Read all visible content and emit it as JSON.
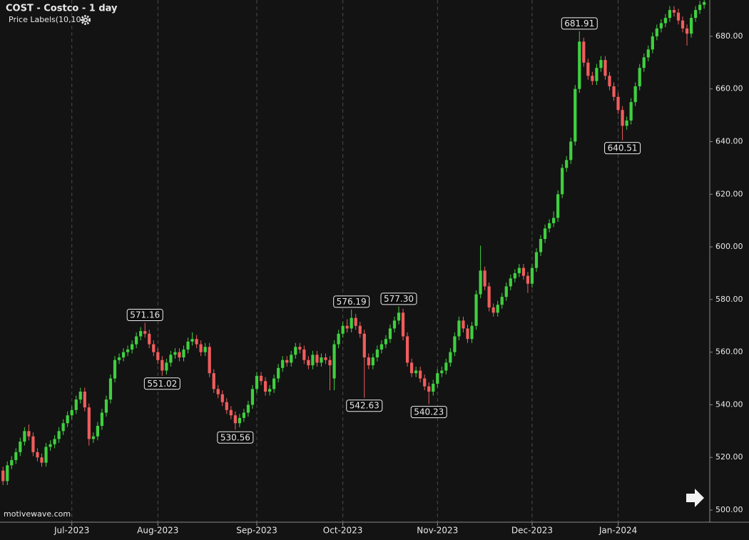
{
  "chart_data": {
    "type": "candlestick",
    "title": "COST - Costco - 1 day",
    "indicator": "Price Labels(10,10)",
    "source": "motivewave.com",
    "up_color": "#3fd03f",
    "down_color": "#f05d5d",
    "grid": true,
    "xlim": [
      -0.7,
      164.3
    ],
    "ylim": [
      495.4,
      693.8
    ],
    "xticks": [
      {
        "value": 16,
        "label": "Jul-2023"
      },
      {
        "value": 36,
        "label": "Aug-2023"
      },
      {
        "value": 59,
        "label": "Sep-2023"
      },
      {
        "value": 79,
        "label": "Oct-2023"
      },
      {
        "value": 101,
        "label": "Nov-2023"
      },
      {
        "value": 123,
        "label": "Dec-2023"
      },
      {
        "value": 143,
        "label": "Jan-2024"
      }
    ],
    "yticks": [
      {
        "value": 500,
        "label": "500.00"
      },
      {
        "value": 520,
        "label": "520.00"
      },
      {
        "value": 540,
        "label": "540.00"
      },
      {
        "value": 560,
        "label": "560.00"
      },
      {
        "value": 580,
        "label": "580.00"
      },
      {
        "value": 600,
        "label": "600.00"
      },
      {
        "value": 620,
        "label": "620.00"
      },
      {
        "value": 640,
        "label": "640.00"
      },
      {
        "value": 660,
        "label": "660.00"
      },
      {
        "value": 680,
        "label": "680.00"
      }
    ],
    "price_labels": [
      571.16,
      551.02,
      530.56,
      576.19,
      542.63,
      {
        "value": 577.3,
        "label": "577.30"
      },
      540.23,
      681.91,
      640.51
    ],
    "ohlc": [
      [
        515,
        516.5,
        509.5,
        511
      ],
      [
        511,
        518.5,
        509.5,
        517
      ],
      [
        517,
        520.5,
        515.5,
        519
      ],
      [
        519,
        523.5,
        517.5,
        522
      ],
      [
        522,
        527.5,
        520.5,
        526
      ],
      [
        526,
        531.5,
        524.5,
        530
      ],
      [
        530,
        532.5,
        526.5,
        528
      ],
      [
        528,
        529.5,
        520.5,
        522
      ],
      [
        522,
        523.5,
        518.5,
        520
      ],
      [
        520,
        521.5,
        516.5,
        518
      ],
      [
        518,
        525.5,
        516.5,
        524
      ],
      [
        524,
        526.5,
        522.5,
        525
      ],
      [
        525,
        528.5,
        523.5,
        527
      ],
      [
        527,
        531.5,
        525.5,
        530
      ],
      [
        530,
        534.5,
        528.5,
        533
      ],
      [
        533,
        537.5,
        531.5,
        536
      ],
      [
        536,
        539.5,
        534.5,
        538
      ],
      [
        538,
        543.5,
        536.5,
        542
      ],
      [
        542,
        546.5,
        540.5,
        545
      ],
      [
        545,
        546.5,
        537.5,
        539
      ],
      [
        539,
        540.5,
        524.5,
        527
      ],
      [
        527,
        529.5,
        525.5,
        528
      ],
      [
        528,
        533.5,
        526.5,
        532
      ],
      [
        532,
        538.5,
        530.5,
        537
      ],
      [
        537,
        543.5,
        535.5,
        542
      ],
      [
        542,
        551.5,
        540.5,
        550
      ],
      [
        550,
        558.5,
        548.5,
        557
      ],
      [
        557,
        559.5,
        555.5,
        558
      ],
      [
        558,
        561.5,
        556.5,
        560
      ],
      [
        560,
        562.5,
        558.5,
        561
      ],
      [
        561,
        564.5,
        559.5,
        563
      ],
      [
        563,
        567.5,
        561.5,
        566
      ],
      [
        566,
        569.5,
        564.5,
        568
      ],
      [
        568,
        571.16,
        565.5,
        567
      ],
      [
        567,
        568.5,
        561.5,
        563
      ],
      [
        563,
        564.5,
        558.5,
        560
      ],
      [
        560,
        561.5,
        555.5,
        557
      ],
      [
        557,
        558.5,
        551.02,
        553
      ],
      [
        553,
        557.5,
        551.5,
        556
      ],
      [
        556,
        560.5,
        554.5,
        559
      ],
      [
        559,
        561.5,
        557.5,
        560
      ],
      [
        560,
        561.5,
        556.5,
        558
      ],
      [
        558,
        562.5,
        556.5,
        561
      ],
      [
        561,
        565.5,
        559.5,
        564
      ],
      [
        564,
        567.5,
        562.5,
        565
      ],
      [
        565,
        566.5,
        561.5,
        563
      ],
      [
        563,
        564.5,
        558.5,
        560
      ],
      [
        560,
        563.5,
        558.5,
        562
      ],
      [
        562,
        563.5,
        550.5,
        552
      ],
      [
        552,
        553.5,
        544.5,
        546
      ],
      [
        546,
        547.5,
        542.5,
        544
      ],
      [
        544,
        545.5,
        539.5,
        541
      ],
      [
        541,
        542.5,
        536.5,
        538
      ],
      [
        538,
        539.5,
        534.5,
        536
      ],
      [
        536,
        537.5,
        530.56,
        533
      ],
      [
        533,
        536.5,
        531.5,
        535
      ],
      [
        535,
        538.5,
        533.5,
        537
      ],
      [
        537,
        541.5,
        535.5,
        540
      ],
      [
        540,
        547.5,
        538.5,
        546
      ],
      [
        546,
        552.5,
        544.5,
        551
      ],
      [
        551,
        552.5,
        547.5,
        549
      ],
      [
        549,
        550.5,
        543.5,
        545
      ],
      [
        545,
        547.5,
        543.5,
        546
      ],
      [
        546,
        551.5,
        544.5,
        550
      ],
      [
        550,
        555.5,
        548.5,
        554
      ],
      [
        554,
        558.5,
        552.5,
        557
      ],
      [
        557,
        558.5,
        554.5,
        556
      ],
      [
        556,
        560.5,
        554.5,
        559
      ],
      [
        559,
        563.5,
        557.5,
        562
      ],
      [
        562,
        563.5,
        559.5,
        561
      ],
      [
        561,
        562.5,
        555.5,
        557
      ],
      [
        557,
        558.5,
        553.5,
        555
      ],
      [
        555,
        560.5,
        553.5,
        559
      ],
      [
        559,
        560.5,
        554.5,
        556
      ],
      [
        556,
        559.5,
        554.5,
        558
      ],
      [
        558,
        559.5,
        555.5,
        557
      ],
      [
        557,
        558.5,
        545.5,
        555
      ],
      [
        550,
        564.5,
        545.5,
        563
      ],
      [
        563,
        568.5,
        561.5,
        567
      ],
      [
        567,
        571.5,
        565.5,
        570
      ],
      [
        570,
        572.5,
        567.5,
        569
      ],
      [
        569,
        576.19,
        567.5,
        573
      ],
      [
        573,
        574.5,
        568.5,
        570
      ],
      [
        570,
        571.5,
        565.5,
        567
      ],
      [
        567,
        568.5,
        542.63,
        558
      ],
      [
        558,
        559.5,
        553.5,
        555
      ],
      [
        555,
        559.5,
        553.5,
        558
      ],
      [
        558,
        562.5,
        556.5,
        561
      ],
      [
        561,
        564.5,
        559.5,
        563
      ],
      [
        563,
        566.5,
        561.5,
        565
      ],
      [
        565,
        570.5,
        563.5,
        569
      ],
      [
        569,
        573.5,
        567.5,
        572
      ],
      [
        572,
        577.3,
        570.5,
        575
      ],
      [
        575,
        576.5,
        564.5,
        566
      ],
      [
        566,
        567.5,
        554.5,
        556
      ],
      [
        556,
        557.5,
        550.5,
        552
      ],
      [
        552,
        554.5,
        550.5,
        553
      ],
      [
        553,
        554.5,
        548.5,
        550
      ],
      [
        550,
        551.5,
        545.5,
        547
      ],
      [
        547,
        548.5,
        540.23,
        545
      ],
      [
        545,
        549.5,
        543.5,
        548
      ],
      [
        548,
        553.5,
        546.5,
        552
      ],
      [
        552,
        554.5,
        550.5,
        553
      ],
      [
        553,
        557.5,
        551.5,
        556
      ],
      [
        556,
        561.5,
        554.5,
        560
      ],
      [
        560,
        567.5,
        558.5,
        566
      ],
      [
        566,
        573.5,
        564.5,
        572
      ],
      [
        572,
        573.5,
        567.5,
        569
      ],
      [
        569,
        570.5,
        563.5,
        565
      ],
      [
        565,
        571.5,
        563.5,
        570
      ],
      [
        570,
        583.5,
        568.5,
        582
      ],
      [
        582,
        600.5,
        580.5,
        591
      ],
      [
        591,
        592.5,
        583.5,
        585
      ],
      [
        585,
        586.5,
        575.5,
        577
      ],
      [
        577,
        578.5,
        573.5,
        575
      ],
      [
        575,
        579.5,
        573.5,
        578
      ],
      [
        578,
        582.5,
        576.5,
        581
      ],
      [
        581,
        586.5,
        579.5,
        585
      ],
      [
        585,
        589.5,
        583.5,
        588
      ],
      [
        588,
        591.5,
        586.5,
        590
      ],
      [
        590,
        593.5,
        588.5,
        592
      ],
      [
        592,
        593.5,
        587.5,
        589
      ],
      [
        589,
        590.5,
        582.5,
        586
      ],
      [
        586,
        593.5,
        584.5,
        592
      ],
      [
        592,
        599.5,
        590.5,
        598
      ],
      [
        598,
        604.5,
        596.5,
        603
      ],
      [
        603,
        608.5,
        601.5,
        607
      ],
      [
        607,
        610.5,
        605.5,
        609
      ],
      [
        609,
        613.5,
        607.5,
        611
      ],
      [
        611,
        621.5,
        609.5,
        620
      ],
      [
        620,
        631.5,
        618.5,
        630
      ],
      [
        630,
        634.5,
        628.5,
        633
      ],
      [
        633,
        641.5,
        631.5,
        640
      ],
      [
        640,
        661.5,
        638.5,
        660
      ],
      [
        660,
        681.91,
        658.5,
        678
      ],
      [
        678,
        679.5,
        668.5,
        670
      ],
      [
        670,
        671.5,
        663.5,
        665
      ],
      [
        665,
        666.5,
        661.5,
        663
      ],
      [
        663,
        669.5,
        661.5,
        668
      ],
      [
        668,
        672.5,
        666.5,
        671
      ],
      [
        671,
        672.5,
        663.5,
        665
      ],
      [
        665,
        666.5,
        659.5,
        661
      ],
      [
        661,
        662.5,
        655.5,
        657
      ],
      [
        657,
        658.5,
        650.5,
        652
      ],
      [
        652,
        653.5,
        640.51,
        646
      ],
      [
        646,
        649.5,
        644.5,
        648
      ],
      [
        648,
        656.5,
        646.5,
        655
      ],
      [
        655,
        662.5,
        653.5,
        661
      ],
      [
        661,
        669.5,
        659.5,
        668
      ],
      [
        668,
        673.5,
        666.5,
        672
      ],
      [
        672,
        676.5,
        670.5,
        675
      ],
      [
        675,
        681.5,
        673.5,
        680
      ],
      [
        680,
        684.5,
        678.5,
        683
      ],
      [
        683,
        686.5,
        681.5,
        685
      ],
      [
        685,
        688.5,
        683.5,
        687
      ],
      [
        687,
        691.5,
        685.5,
        690
      ],
      [
        690,
        691.5,
        687.5,
        689
      ],
      [
        689,
        690.5,
        684.5,
        686
      ],
      [
        686,
        687.5,
        681.5,
        683
      ],
      [
        683,
        684.5,
        676.5,
        681
      ],
      [
        681,
        688.5,
        679.5,
        687
      ],
      [
        687,
        691.5,
        685.5,
        690
      ],
      [
        690,
        693.5,
        688.5,
        692
      ],
      [
        692,
        694.5,
        690.5,
        693
      ]
    ]
  }
}
